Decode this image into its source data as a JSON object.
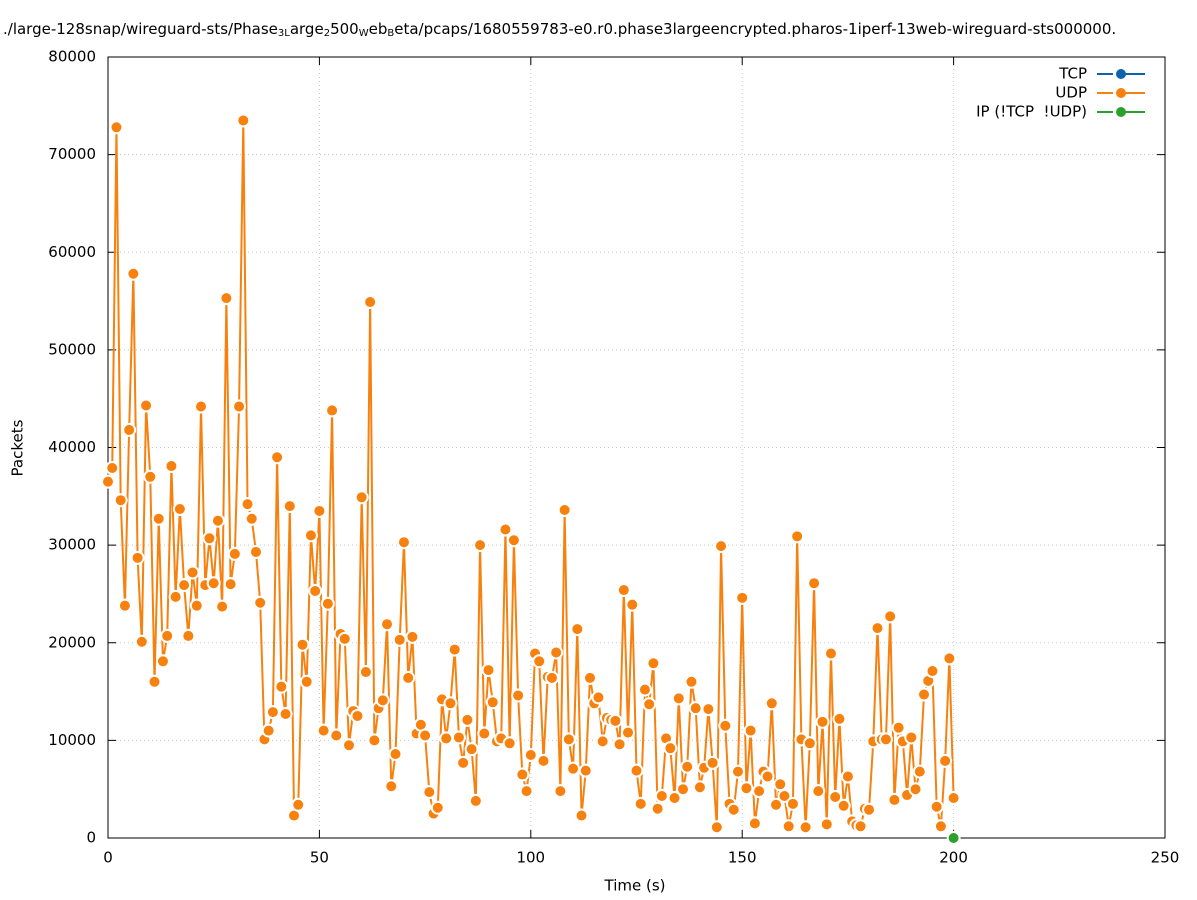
{
  "chart_data": {
    "type": "line",
    "title_parts": [
      {
        "text": "./large-128snap/wireguard-sts/Phase"
      },
      {
        "text": "3L",
        "sub": true
      },
      {
        "text": "arge"
      },
      {
        "text": "2",
        "sub": true
      },
      {
        "text": "500"
      },
      {
        "text": "W",
        "sub": true
      },
      {
        "text": "eb"
      },
      {
        "text": "B",
        "sub": true
      },
      {
        "text": "eta/pcaps/1680559783-e0.r0.phase3largeencrypted.pharos-1iperf-13web-wireguard-sts000000."
      }
    ],
    "xlabel": "Time (s)",
    "ylabel": "Packets",
    "xlim": [
      0,
      250
    ],
    "xticks": [
      0,
      50,
      100,
      150,
      200,
      250
    ],
    "ylim": [
      0,
      80000
    ],
    "yticks": [
      0,
      10000,
      20000,
      30000,
      40000,
      50000,
      60000,
      70000,
      80000
    ],
    "grid": true,
    "legend": "top-right",
    "series": [
      {
        "name": "TCP",
        "color": "#0b63b0",
        "x": [],
        "values": []
      },
      {
        "name": "UDP",
        "color": "#f7810e",
        "x": [
          0,
          1,
          2,
          3,
          4,
          5,
          6,
          7,
          8,
          9,
          10,
          11,
          12,
          13,
          14,
          15,
          16,
          17,
          18,
          19,
          20,
          21,
          22,
          23,
          24,
          25,
          26,
          27,
          28,
          29,
          30,
          31,
          32,
          33,
          34,
          35,
          36,
          37,
          38,
          39,
          40,
          41,
          42,
          43,
          44,
          45,
          46,
          47,
          48,
          49,
          50,
          51,
          52,
          53,
          54,
          55,
          56,
          57,
          58,
          59,
          60,
          61,
          62,
          63,
          64,
          65,
          66,
          67,
          68,
          69,
          70,
          71,
          72,
          73,
          74,
          75,
          76,
          77,
          78,
          79,
          80,
          81,
          82,
          83,
          84,
          85,
          86,
          87,
          88,
          89,
          90,
          91,
          92,
          93,
          94,
          95,
          96,
          97,
          98,
          99,
          100,
          101,
          102,
          103,
          104,
          105,
          106,
          107,
          108,
          109,
          110,
          111,
          112,
          113,
          114,
          115,
          116,
          117,
          118,
          119,
          120,
          121,
          122,
          123,
          124,
          125,
          126,
          127,
          128,
          129,
          130,
          131,
          132,
          133,
          134,
          135,
          136,
          137,
          138,
          139,
          140,
          141,
          142,
          143,
          144,
          145,
          146,
          147,
          148,
          149,
          150,
          151,
          152,
          153,
          154,
          155,
          156,
          157,
          158,
          159,
          160,
          161,
          162,
          163,
          164,
          165,
          166,
          167,
          168,
          169,
          170,
          171,
          172,
          173,
          174,
          175,
          176,
          177,
          178,
          179,
          180,
          181,
          182,
          183,
          184,
          185,
          186,
          187,
          188,
          189,
          190,
          191,
          192,
          193,
          194,
          195,
          196,
          197,
          198,
          199,
          200
        ],
        "values": [
          36500,
          37900,
          72800,
          34600,
          23800,
          41800,
          57800,
          28700,
          20100,
          44300,
          37000,
          16000,
          32700,
          18100,
          20700,
          38100,
          24700,
          33700,
          25900,
          20700,
          27200,
          23800,
          44200,
          25900,
          30700,
          26100,
          32500,
          23700,
          55300,
          26000,
          29100,
          44200,
          73500,
          34200,
          32700,
          29300,
          24100,
          10100,
          11000,
          12900,
          39000,
          15500,
          12700,
          34000,
          2300,
          3400,
          19800,
          16000,
          31000,
          25300,
          33500,
          11000,
          24000,
          43800,
          10500,
          20900,
          20400,
          9500,
          13000,
          12500,
          34900,
          17000,
          54900,
          10000,
          13300,
          14100,
          21900,
          5300,
          8600,
          20300,
          30300,
          16400,
          20600,
          10700,
          11600,
          10500,
          4700,
          2500,
          3100,
          14200,
          10200,
          13800,
          19300,
          10300,
          7700,
          12100,
          9100,
          3800,
          30000,
          10700,
          17200,
          13900,
          9900,
          10200,
          31600,
          9700,
          30500,
          14600,
          6500,
          4800,
          8500,
          18900,
          18100,
          7900,
          16500,
          16400,
          19000,
          4800,
          33600,
          10100,
          7100,
          21400,
          2300,
          6900,
          16400,
          13800,
          14400,
          9900,
          12300,
          12100,
          12000,
          9600,
          25400,
          10800,
          23900,
          6900,
          3500,
          15200,
          13700,
          17900,
          3000,
          4300,
          10200,
          9200,
          4100,
          14300,
          5000,
          7300,
          16000,
          13300,
          5200,
          7200,
          13200,
          7700,
          1100,
          29900,
          11500,
          3500,
          2900,
          6800,
          24600,
          5100,
          11000,
          1500,
          4800,
          6800,
          6300,
          13800,
          3400,
          5500,
          4300,
          1200,
          3500,
          30900,
          10100,
          1100,
          9700,
          26100,
          4800,
          11900,
          1400,
          18900,
          4200,
          12200,
          3300,
          6300,
          1700,
          1300,
          1200,
          3000,
          2900,
          9900,
          21500,
          10100,
          10100,
          22700,
          3900,
          11300,
          9900,
          4400,
          10300,
          5000,
          6800,
          14700,
          16100,
          17100,
          3200,
          1200,
          7900,
          18400,
          4100
        ]
      },
      {
        "name": "IP (!TCP  !UDP)",
        "color": "#2ca02c",
        "x": [
          200
        ],
        "values": [
          0
        ]
      }
    ]
  }
}
